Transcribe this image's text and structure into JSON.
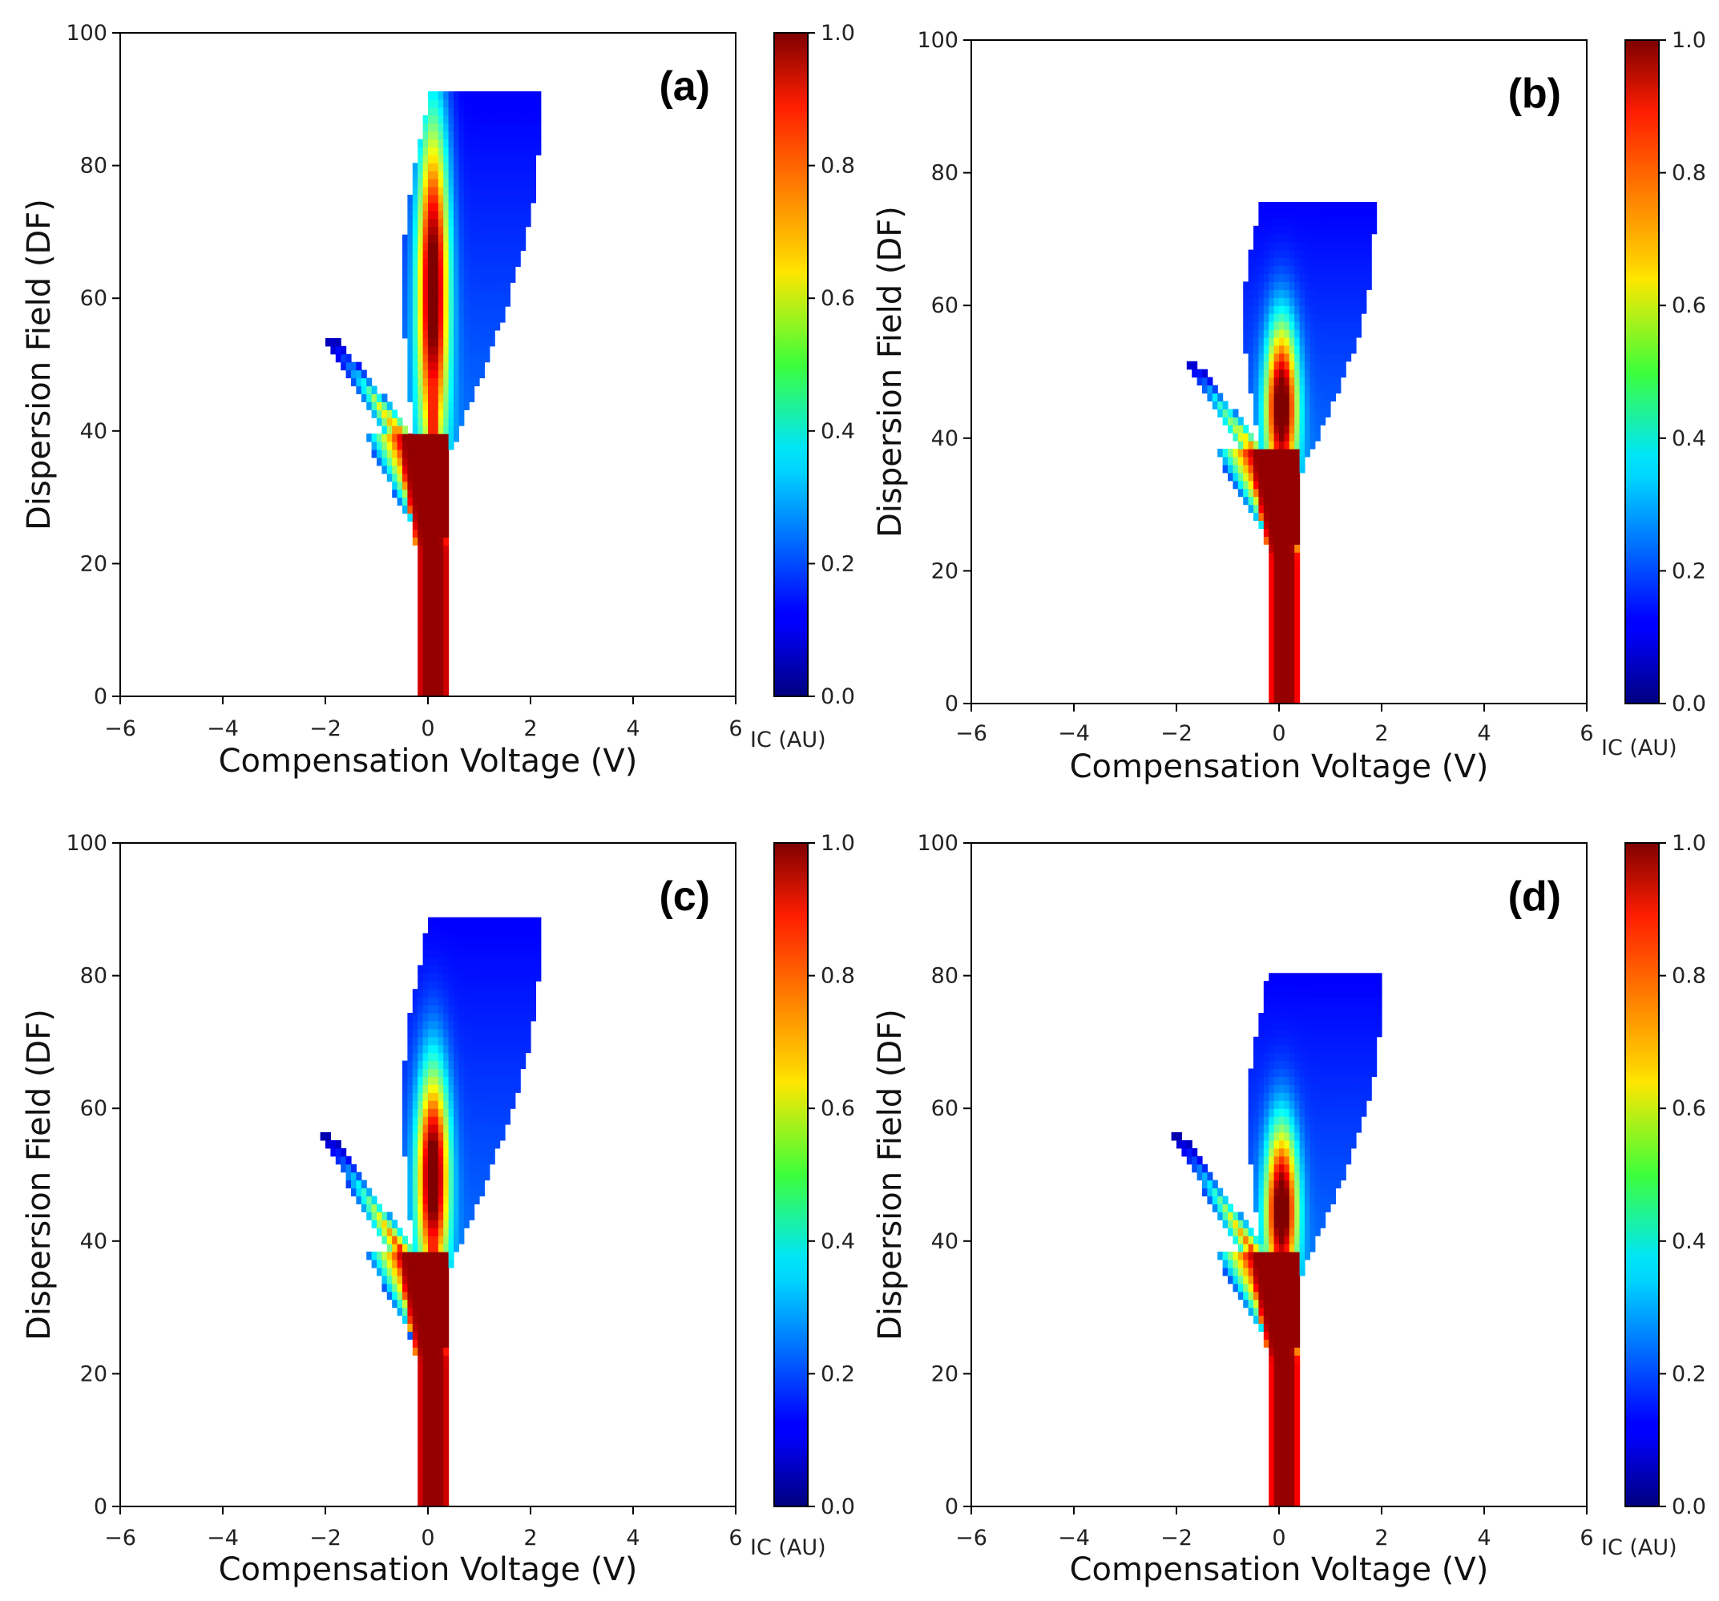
{
  "chart_data": [
    {
      "type": "heatmap",
      "panel_label": "(a)",
      "xlabel": "Compensation Voltage (V)",
      "ylabel": "Dispersion Field (DF)",
      "xlim": [
        -6,
        6
      ],
      "ylim": [
        0,
        100
      ],
      "xticks": [
        "−6",
        "−4",
        "−2",
        "0",
        "2",
        "4",
        "6"
      ],
      "yticks": [
        "0",
        "20",
        "40",
        "60",
        "80",
        "100"
      ],
      "colorbar": {
        "label": "IC (AU)",
        "range": [
          0.0,
          1.0
        ],
        "ticks": [
          "0.0",
          "0.2",
          "0.4",
          "0.6",
          "0.8",
          "1.0"
        ],
        "colormap": "jet"
      },
      "features": {
        "stem_center_cv": 0.1,
        "stem_halfwidth_cv": 0.33,
        "branch_point": {
          "cv": -0.3,
          "df": 37
        },
        "left_branch_tip": {
          "cv": -1.9,
          "df": 54
        },
        "upper_core_peak": {
          "cv": 0.1,
          "df": 62
        },
        "top_extent": {
          "cv": 1.7,
          "df": 91
        }
      }
    },
    {
      "type": "heatmap",
      "panel_label": "(b)",
      "xlabel": "Compensation Voltage (V)",
      "ylabel": "Dispersion Field (DF)",
      "xlim": [
        -6,
        6
      ],
      "ylim": [
        0,
        100
      ],
      "xticks": [
        "−6",
        "−4",
        "−2",
        "0",
        "2",
        "4",
        "6"
      ],
      "yticks": [
        "0",
        "20",
        "40",
        "60",
        "80",
        "100"
      ],
      "colorbar": {
        "label": "IC (AU)",
        "range": [
          0.0,
          1.0
        ],
        "ticks": [
          "0.0",
          "0.2",
          "0.4",
          "0.6",
          "0.8",
          "1.0"
        ],
        "colormap": "jet"
      },
      "features": {
        "stem_center_cv": 0.1,
        "stem_halfwidth_cv": 0.3,
        "branch_point": {
          "cv": -0.2,
          "df": 35
        },
        "left_branch_tip": {
          "cv": -1.8,
          "df": 52
        },
        "upper_core_peak": {
          "cv": 0.05,
          "df": 45
        },
        "top_extent": {
          "cv": 1.0,
          "df": 76
        }
      }
    },
    {
      "type": "heatmap",
      "panel_label": "(c)",
      "xlabel": "Compensation Voltage (V)",
      "ylabel": "Dispersion Field (DF)",
      "xlim": [
        -6,
        6
      ],
      "ylim": [
        0,
        100
      ],
      "xticks": [
        "−6",
        "−4",
        "−2",
        "0",
        "2",
        "4",
        "6"
      ],
      "yticks": [
        "0",
        "20",
        "40",
        "60",
        "80",
        "100"
      ],
      "colorbar": {
        "label": "IC (AU)",
        "range": [
          0.0,
          1.0
        ],
        "ticks": [
          "0.0",
          "0.2",
          "0.4",
          "0.6",
          "0.8",
          "1.0"
        ],
        "colormap": "jet"
      },
      "features": {
        "stem_center_cv": 0.1,
        "stem_halfwidth_cv": 0.33,
        "branch_point": {
          "cv": -0.3,
          "df": 36
        },
        "left_branch_tip": {
          "cv": -2.0,
          "df": 56
        },
        "upper_core_peak": {
          "cv": 0.1,
          "df": 50
        },
        "top_extent": {
          "cv": 1.7,
          "df": 89
        }
      }
    },
    {
      "type": "heatmap",
      "panel_label": "(d)",
      "xlabel": "Compensation Voltage (V)",
      "ylabel": "Dispersion Field (DF)",
      "xlim": [
        -6,
        6
      ],
      "ylim": [
        0,
        100
      ],
      "xticks": [
        "−6",
        "−4",
        "−2",
        "0",
        "2",
        "4",
        "6"
      ],
      "yticks": [
        "0",
        "20",
        "40",
        "60",
        "80",
        "100"
      ],
      "colorbar": {
        "label": "IC (AU)",
        "range": [
          0.0,
          1.0
        ],
        "ticks": [
          "0.0",
          "0.2",
          "0.4",
          "0.6",
          "0.8",
          "1.0"
        ],
        "colormap": "jet"
      },
      "features": {
        "stem_center_cv": 0.1,
        "stem_halfwidth_cv": 0.3,
        "branch_point": {
          "cv": -0.2,
          "df": 35
        },
        "left_branch_tip": {
          "cv": -2.0,
          "df": 56
        },
        "upper_core_peak": {
          "cv": 0.05,
          "df": 45
        },
        "top_extent": {
          "cv": 1.3,
          "df": 81
        }
      }
    }
  ]
}
